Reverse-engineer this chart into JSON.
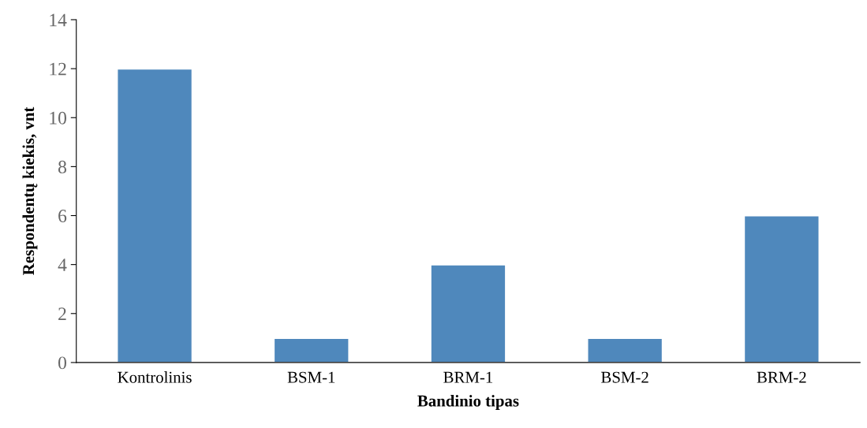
{
  "chart_data": {
    "type": "bar",
    "xlabel": "Bandinio tipas",
    "ylabel": "Respondentų kiekis, vnt",
    "categories": [
      "Kontrolinis",
      "BSM-1",
      "BRM-1",
      "BSM-2",
      "BRM-2"
    ],
    "values": [
      12,
      1,
      4,
      1,
      6
    ],
    "color": "#4f88bc",
    "ylim": [
      0,
      14
    ],
    "yticks": [
      0,
      2,
      4,
      6,
      8,
      10,
      12,
      14
    ],
    "grid": false,
    "legend": false
  }
}
